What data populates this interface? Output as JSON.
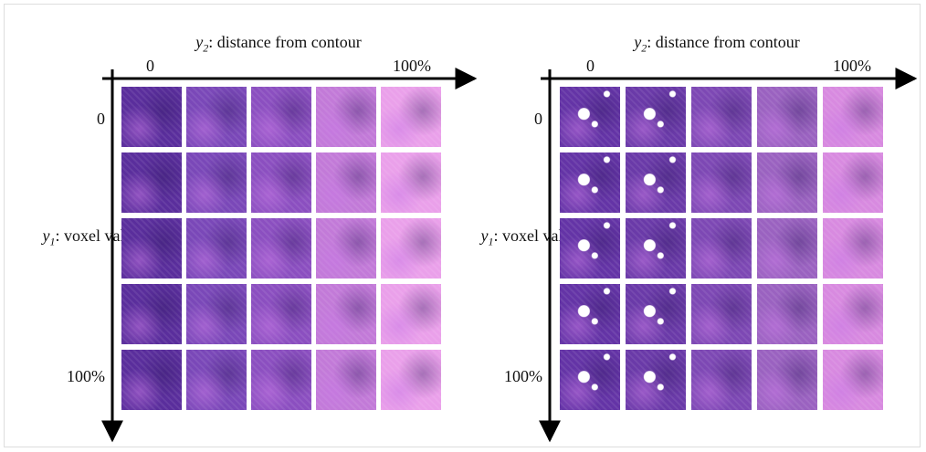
{
  "panels": [
    {
      "x_axis": {
        "var": "y",
        "sub": "2",
        "text": ": distance from contour"
      },
      "x_ticks": [
        "0",
        "100%"
      ],
      "y_axis": {
        "var": "y",
        "sub": "1",
        "text": ": voxel value"
      },
      "y_ticks": [
        "0",
        "100%"
      ]
    },
    {
      "x_axis": {
        "var": "y",
        "sub": "2",
        "text": ": distance from contour"
      },
      "x_ticks": [
        "0",
        "100%"
      ],
      "y_axis": {
        "var": "y",
        "sub": "1",
        "text": ": voxel value"
      },
      "y_ticks": [
        "0",
        "100%"
      ]
    }
  ]
}
